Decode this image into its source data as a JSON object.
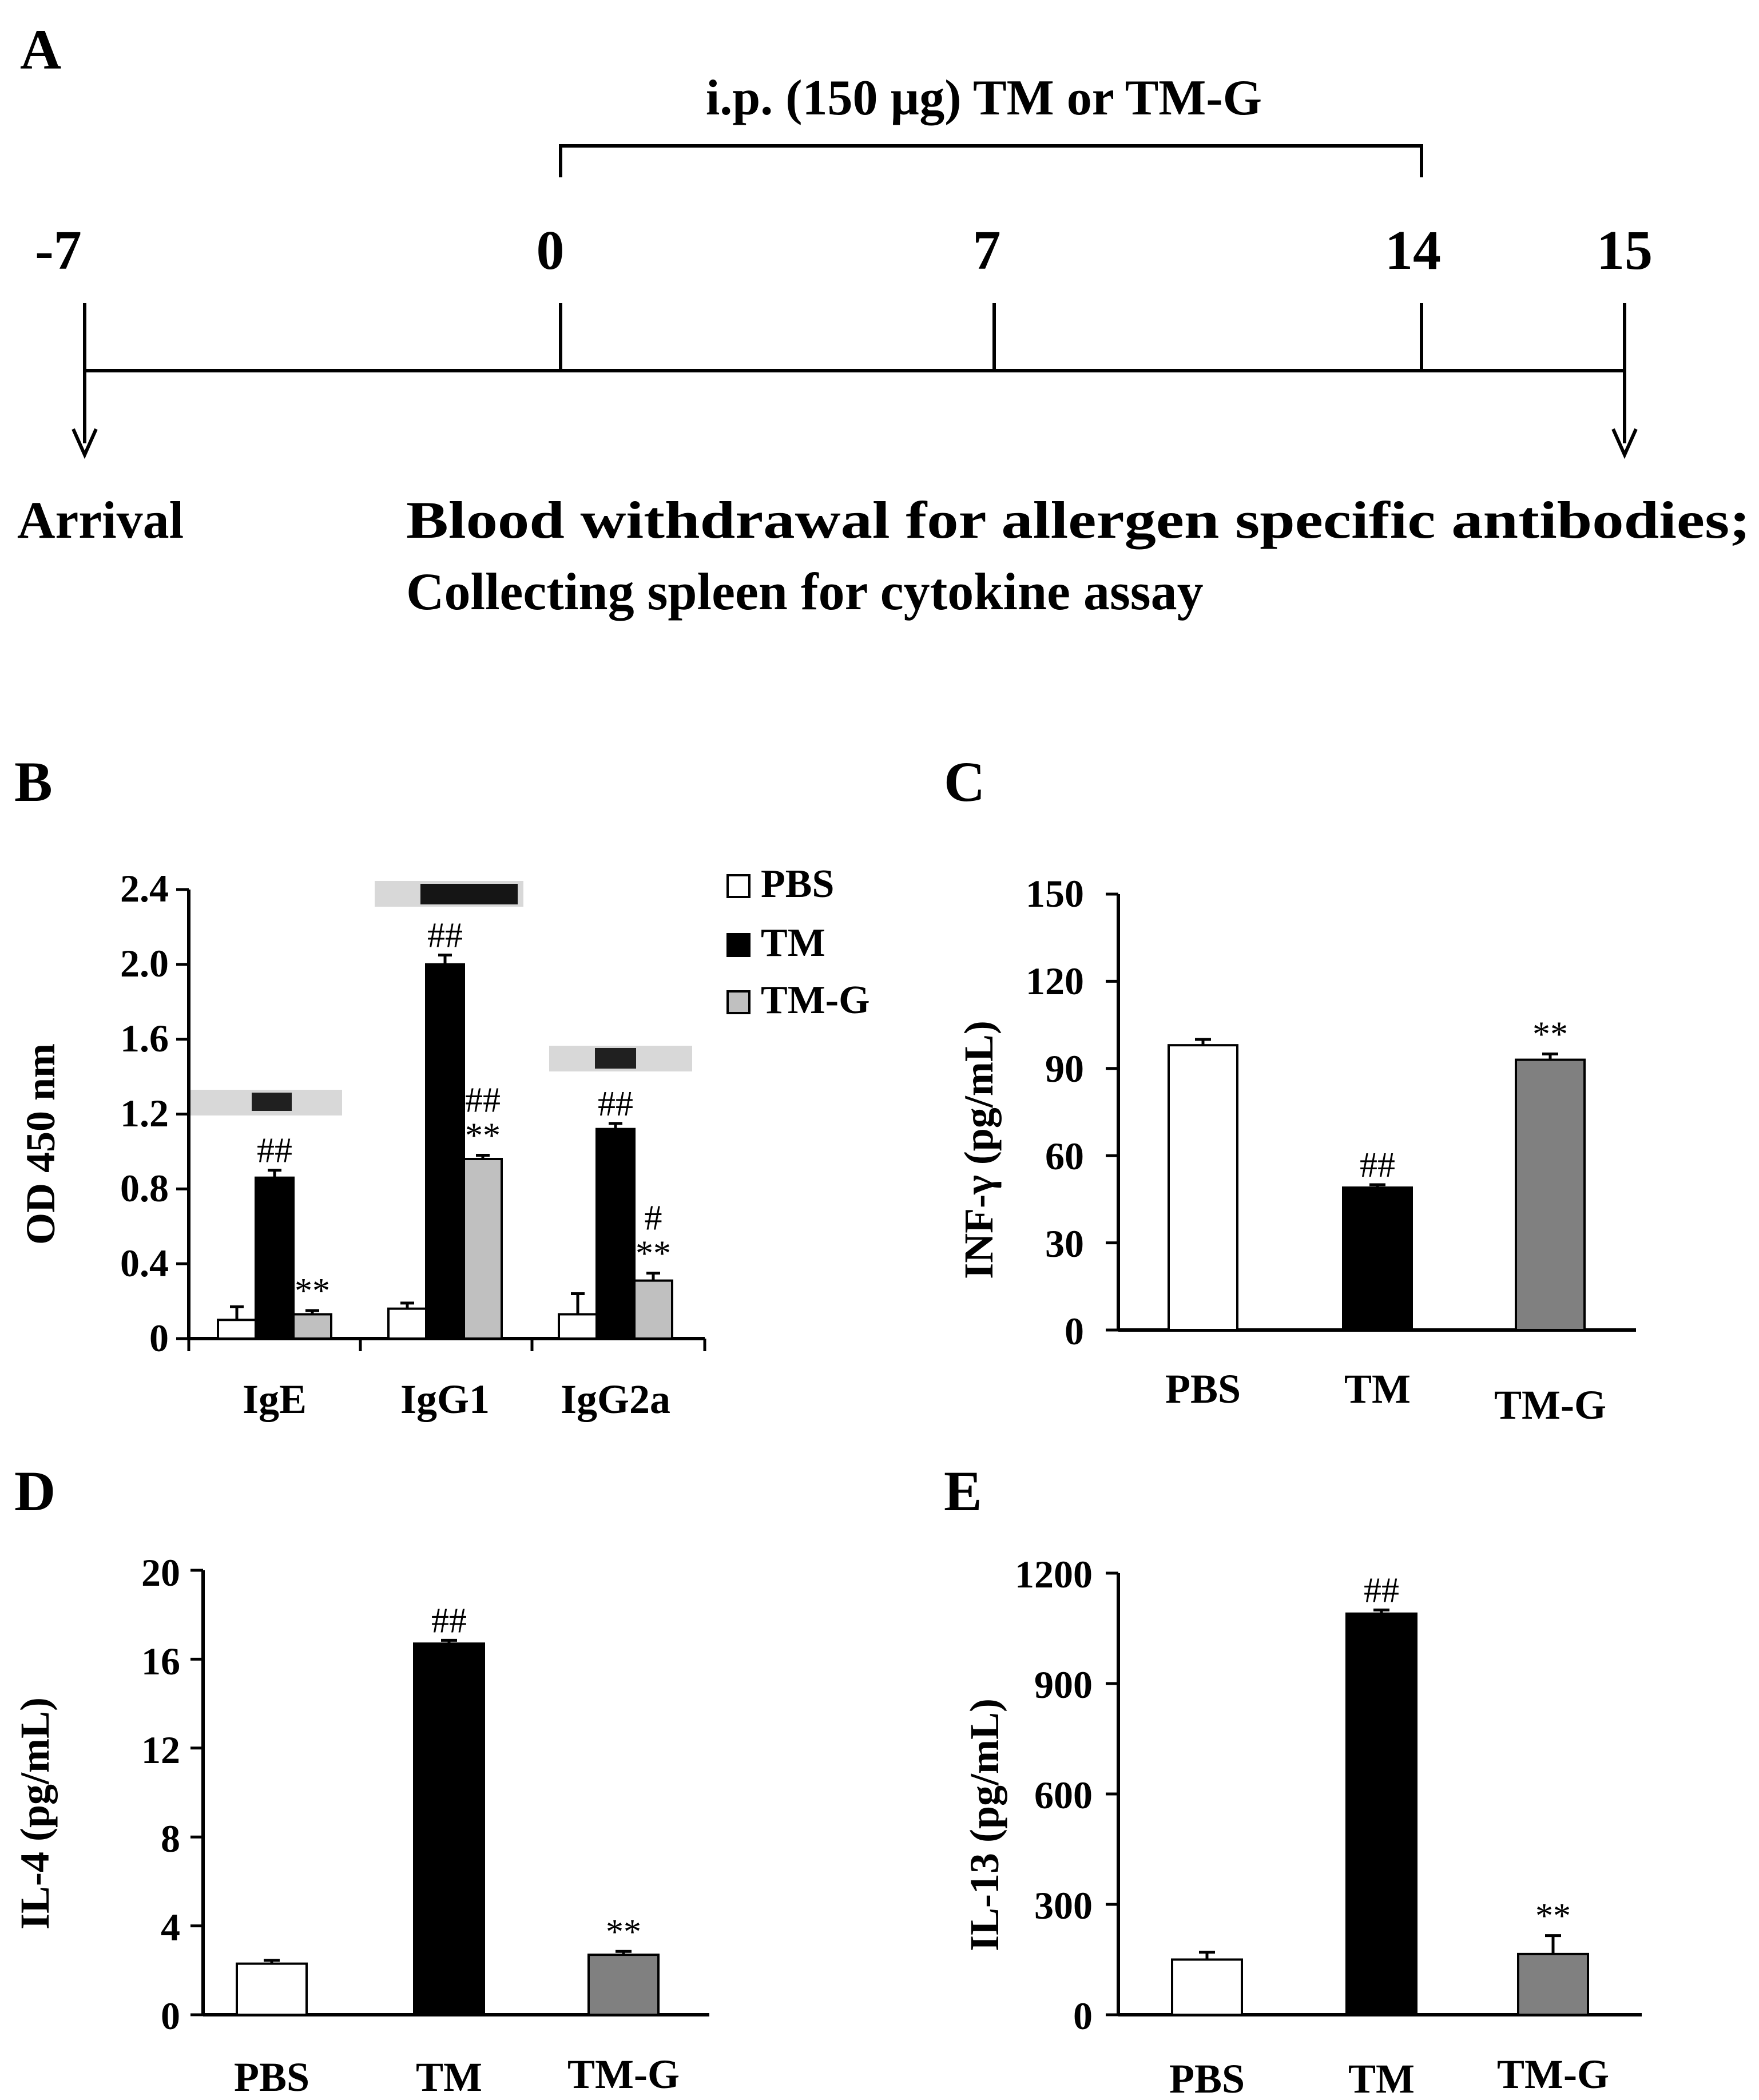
{
  "colors": {
    "PBS": "#ffffff",
    "TM": "#000000",
    "TM-G_B": "#c0c0c0",
    "TM-G": "#808080"
  },
  "panel_a": {
    "label": "A",
    "treatment": "i.p. (150 µg) TM or TM-G",
    "days": [
      "-7",
      "0",
      "7",
      "14",
      "15"
    ],
    "arrival": "Arrival",
    "endpoint_line1": "Blood withdrawal for allergen specific antibodies;",
    "endpoint_line2": "Collecting spleen for cytokine assay"
  },
  "chart_data": [
    {
      "panel": "B",
      "type": "bar",
      "categories": [
        "IgE",
        "IgG1",
        "IgG2a"
      ],
      "ylabel": "OD 450 nm",
      "ylim": [
        0,
        2.4
      ],
      "yticks": [
        "0",
        "0.4",
        "0.8",
        "1.2",
        "1.6",
        "2.0",
        "2.4"
      ],
      "legend": [
        "PBS",
        "TM",
        "TM-G"
      ],
      "series": [
        {
          "name": "PBS",
          "values": [
            0.1,
            0.16,
            0.13
          ],
          "errors": [
            0.07,
            0.03,
            0.11
          ],
          "marks": [
            "",
            "",
            ""
          ]
        },
        {
          "name": "TM",
          "values": [
            0.86,
            2.0,
            1.12
          ],
          "errors": [
            0.04,
            0.05,
            0.03
          ],
          "marks": [
            "##",
            "##",
            "##"
          ]
        },
        {
          "name": "TM-G",
          "values": [
            0.13,
            0.96,
            0.31
          ],
          "errors": [
            0.02,
            0.02,
            0.04
          ],
          "marks": [
            "**",
            "##\n**",
            "#\n**"
          ]
        }
      ]
    },
    {
      "panel": "C",
      "type": "bar",
      "categories": [
        "PBS",
        "TM",
        "TM-G"
      ],
      "ylabel": "INF-γ (pg/mL)",
      "ylim": [
        0,
        150
      ],
      "yticks": [
        "0",
        "30",
        "60",
        "90",
        "120",
        "150"
      ],
      "values": [
        98,
        49,
        93
      ],
      "errors": [
        2,
        1,
        2
      ],
      "marks": [
        "",
        "##",
        "**"
      ]
    },
    {
      "panel": "D",
      "type": "bar",
      "categories": [
        "PBS",
        "TM",
        "TM-G"
      ],
      "ylabel": "IL-4 (pg/mL)",
      "ylim": [
        0,
        20
      ],
      "yticks": [
        "0",
        "4",
        "8",
        "12",
        "16",
        "20"
      ],
      "values": [
        2.3,
        16.7,
        2.7
      ],
      "errors": [
        0.15,
        0.15,
        0.15
      ],
      "marks": [
        "",
        "##",
        "**"
      ]
    },
    {
      "panel": "E",
      "type": "bar",
      "categories": [
        "PBS",
        "TM",
        "TM-G"
      ],
      "ylabel": "IL-13 (pg/mL)",
      "ylim": [
        0,
        1200
      ],
      "yticks": [
        "0",
        "300",
        "600",
        "900",
        "1200"
      ],
      "values": [
        150,
        1090,
        165
      ],
      "errors": [
        20,
        10,
        50
      ],
      "marks": [
        "",
        "##",
        "**"
      ]
    }
  ]
}
